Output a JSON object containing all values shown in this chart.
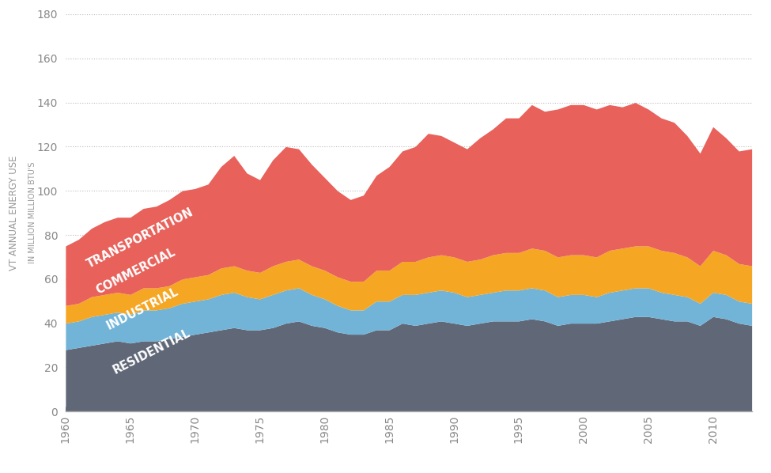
{
  "years": [
    1960,
    1961,
    1962,
    1963,
    1964,
    1965,
    1966,
    1967,
    1968,
    1969,
    1970,
    1971,
    1972,
    1973,
    1974,
    1975,
    1976,
    1977,
    1978,
    1979,
    1980,
    1981,
    1982,
    1983,
    1984,
    1985,
    1986,
    1987,
    1988,
    1989,
    1990,
    1991,
    1992,
    1993,
    1994,
    1995,
    1996,
    1997,
    1998,
    1999,
    2000,
    2001,
    2002,
    2003,
    2004,
    2005,
    2006,
    2007,
    2008,
    2009,
    2010,
    2011,
    2012,
    2013
  ],
  "residential": [
    28,
    29,
    30,
    31,
    32,
    31,
    32,
    32,
    33,
    34,
    35,
    36,
    37,
    38,
    37,
    37,
    38,
    40,
    41,
    39,
    38,
    36,
    35,
    35,
    37,
    37,
    40,
    39,
    40,
    41,
    40,
    39,
    40,
    41,
    41,
    41,
    42,
    41,
    39,
    40,
    40,
    40,
    41,
    42,
    43,
    43,
    42,
    41,
    41,
    39,
    43,
    42,
    40,
    39
  ],
  "industrial": [
    12,
    12,
    13,
    13,
    13,
    13,
    14,
    14,
    14,
    15,
    15,
    15,
    16,
    16,
    15,
    14,
    15,
    15,
    15,
    14,
    13,
    12,
    11,
    11,
    13,
    13,
    13,
    14,
    14,
    14,
    14,
    13,
    13,
    13,
    14,
    14,
    14,
    14,
    13,
    13,
    13,
    12,
    13,
    13,
    13,
    13,
    12,
    12,
    11,
    10,
    11,
    11,
    10,
    10
  ],
  "commercial": [
    8,
    8,
    9,
    9,
    9,
    9,
    10,
    10,
    10,
    11,
    11,
    11,
    12,
    12,
    12,
    12,
    13,
    13,
    13,
    13,
    13,
    13,
    13,
    13,
    14,
    14,
    15,
    15,
    16,
    16,
    16,
    16,
    16,
    17,
    17,
    17,
    18,
    18,
    18,
    18,
    18,
    18,
    19,
    19,
    19,
    19,
    19,
    19,
    18,
    17,
    19,
    18,
    17,
    17
  ],
  "transportation": [
    27,
    29,
    31,
    33,
    34,
    35,
    36,
    37,
    39,
    40,
    40,
    41,
    46,
    50,
    44,
    42,
    48,
    52,
    50,
    46,
    42,
    39,
    37,
    39,
    43,
    47,
    50,
    52,
    56,
    54,
    52,
    51,
    55,
    57,
    61,
    61,
    65,
    63,
    67,
    68,
    68,
    67,
    66,
    64,
    65,
    62,
    60,
    59,
    55,
    51,
    56,
    53,
    51,
    53
  ],
  "colors": {
    "residential": "#606878",
    "industrial": "#72b4d8",
    "commercial": "#f5a623",
    "transportation": "#e8615b"
  },
  "ylabel_main": "VT ANNUAL ENERGY USE",
  "ylabel_sub": "IN MILLION MILLION BTU'S",
  "ylim": [
    0,
    180
  ],
  "yticks": [
    0,
    20,
    40,
    60,
    80,
    100,
    120,
    140,
    160,
    180
  ],
  "xlim": [
    1960,
    2013
  ],
  "xticks": [
    1960,
    1965,
    1970,
    1975,
    1980,
    1985,
    1990,
    1995,
    2000,
    2005,
    2010
  ],
  "background_color": "#ffffff",
  "grid_color": "#bbbbbb",
  "tick_color": "#888888",
  "label_color": "#ffffff",
  "label_fontsize": 10.5
}
